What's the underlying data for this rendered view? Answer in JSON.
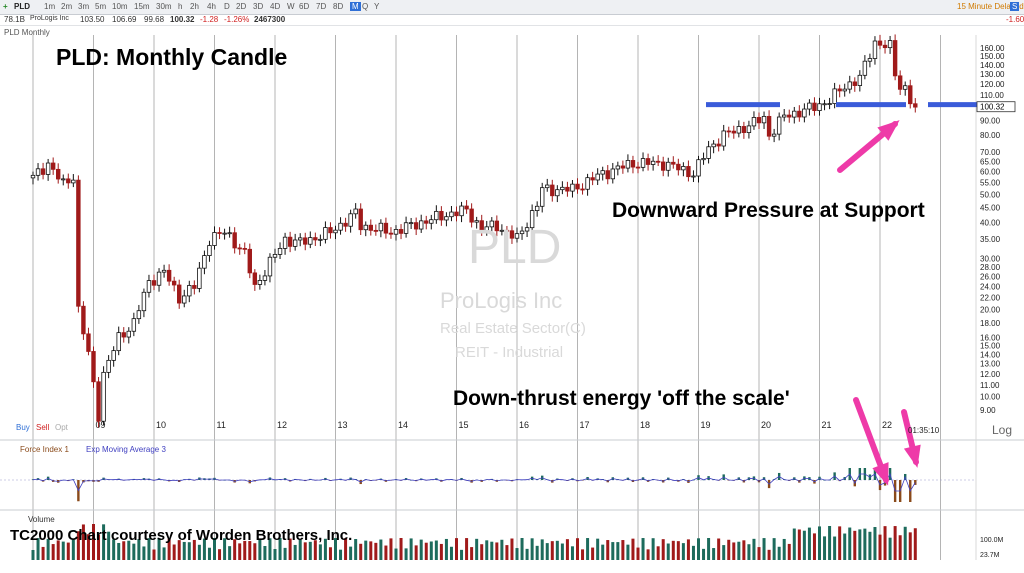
{
  "toolbar": {
    "symbol": "PLD",
    "timeframes": [
      "1m",
      "2m",
      "3m",
      "5m",
      "10m",
      "15m",
      "30m",
      "h",
      "2h",
      "4h",
      "D",
      "2D",
      "3D",
      "4D",
      "W",
      "6D",
      "7D",
      "8D",
      "M",
      "Q",
      "Y"
    ],
    "active_timeframe": "M",
    "delayed_text": "15 Minute Delayed"
  },
  "quote": {
    "market_cap": "78.1B",
    "name": "ProLogis Inc",
    "open": "103.50",
    "high": "106.69",
    "low": "99.68",
    "last": "100.32",
    "change": "-1.28",
    "change_pct": "-1.26%",
    "volume": "2467300",
    "right_change": "-1.60"
  },
  "pane_label": "PLD Monthly",
  "title": "PLD:  Monthly Candle",
  "watermark": {
    "symbol": "PLD",
    "name": "ProLogis Inc",
    "sector": "Real Estate Sector(C)",
    "industry": "REIT - Industrial"
  },
  "annotations": {
    "support": "Downward Pressure at Support",
    "thrust": "Down-thrust energy 'off the scale'",
    "credit": "TC2000 Chart courtesy of Worden Brothers, Inc."
  },
  "trade_labels": {
    "buy": "Buy",
    "sell": "Sell",
    "opt": "Opt"
  },
  "force_label": "Force Index 1",
  "ema_label": "Exp Moving Average 3",
  "volume_label": "Volume",
  "log_label": "Log",
  "time_label": "01:35:10",
  "colors": {
    "up": "#ffffff",
    "down": "#a01a1a",
    "support": "#3a5bd9",
    "arrow": "#ee3aa8",
    "grid": "#b4b4b4",
    "vol_up": "#1d6b5c",
    "vol_down": "#a01a1a",
    "force_up": "#1d6b5c",
    "force_down": "#8a4a1a",
    "ema": "#4040c0"
  },
  "chart_data": {
    "type": "candlestick",
    "title": "PLD:  Monthly Candle",
    "y_scale": "log",
    "ylim": [
      9,
      160
    ],
    "y_ticks": [
      "160.00",
      "150.00",
      "140.00",
      "130.00",
      "120.00",
      "110.00",
      "100.00",
      "90.00",
      "80.00",
      "70.00",
      "65.00",
      "60.00",
      "55.00",
      "50.00",
      "45.00",
      "40.00",
      "35.00",
      "30.00",
      "28.00",
      "26.00",
      "24.00",
      "22.00",
      "20.00",
      "18.00",
      "16.00",
      "15.00",
      "14.00",
      "13.00",
      "12.00",
      "11.00",
      "10.00",
      "9.00"
    ],
    "x_ticks": [
      "09",
      "10",
      "11",
      "12",
      "13",
      "14",
      "15",
      "16",
      "17",
      "18",
      "19",
      "20",
      "21",
      "22"
    ],
    "price_label": "100.32",
    "support_level": 102,
    "monthly_close_anchors": [
      [
        "2008-01",
        57
      ],
      [
        "2008-04",
        64
      ],
      [
        "2008-07",
        54
      ],
      [
        "2008-09",
        58
      ],
      [
        "2008-10",
        20
      ],
      [
        "2008-12",
        14
      ],
      [
        "2009-02",
        8.7
      ],
      [
        "2009-03",
        12
      ],
      [
        "2009-06",
        16
      ],
      [
        "2009-09",
        18
      ],
      [
        "2009-12",
        25
      ],
      [
        "2010-03",
        27
      ],
      [
        "2010-06",
        22
      ],
      [
        "2010-09",
        24
      ],
      [
        "2010-12",
        35
      ],
      [
        "2011-03",
        37
      ],
      [
        "2011-04",
        36
      ],
      [
        "2011-07",
        31
      ],
      [
        "2011-09",
        24
      ],
      [
        "2011-12",
        29
      ],
      [
        "2012-03",
        35
      ],
      [
        "2012-06",
        34
      ],
      [
        "2012-12",
        37
      ],
      [
        "2013-05",
        43
      ],
      [
        "2013-06",
        39
      ],
      [
        "2013-12",
        37
      ],
      [
        "2014-06",
        40
      ],
      [
        "2014-12",
        43
      ],
      [
        "2015-03",
        44
      ],
      [
        "2015-06",
        38
      ],
      [
        "2015-09",
        39
      ],
      [
        "2016-01",
        35
      ],
      [
        "2016-05",
        46
      ],
      [
        "2016-06",
        52
      ],
      [
        "2016-12",
        52
      ],
      [
        "2017-06",
        59
      ],
      [
        "2017-12",
        64
      ],
      [
        "2018-03",
        64
      ],
      [
        "2018-06",
        64
      ],
      [
        "2018-12",
        59
      ],
      [
        "2019-03",
        72
      ],
      [
        "2019-06",
        80
      ],
      [
        "2019-12",
        88
      ],
      [
        "2020-02",
        92
      ],
      [
        "2020-03",
        80
      ],
      [
        "2020-06",
        93
      ],
      [
        "2020-12",
        100
      ],
      [
        "2021-03",
        106
      ],
      [
        "2021-06",
        118
      ],
      [
        "2021-09",
        126
      ],
      [
        "2021-12",
        168
      ],
      [
        "2022-03",
        161
      ],
      [
        "2022-04",
        130
      ],
      [
        "2022-05",
        118
      ],
      [
        "2022-06",
        117
      ],
      [
        "2022-07",
        106
      ],
      [
        "2022-08",
        100
      ]
    ],
    "force_index": {
      "label": "Force Index 1",
      "ema_period": 3,
      "notable_low": "2022-06"
    },
    "volume": {
      "label": "Volume",
      "ticks": [
        "100.0M",
        "23.7M"
      ]
    }
  }
}
